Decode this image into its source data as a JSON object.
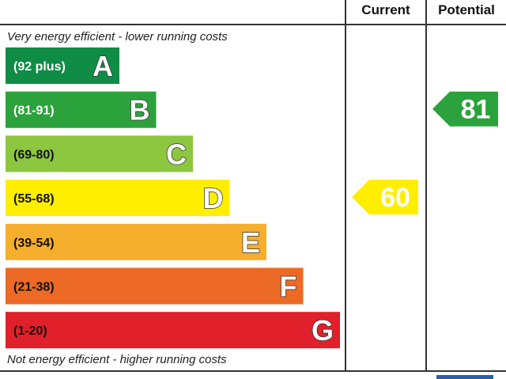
{
  "header": {
    "current": "Current",
    "potential": "Potential"
  },
  "captions": {
    "top": "Very energy efficient - lower running costs",
    "bottom": "Not energy efficient - higher running costs"
  },
  "chart_data": {
    "type": "bar",
    "categories": [
      "A",
      "B",
      "C",
      "D",
      "E",
      "F",
      "G"
    ],
    "ranges": [
      "(92 plus)",
      "(81-91)",
      "(69-80)",
      "(55-68)",
      "(39-54)",
      "(21-38)",
      "(1-20)"
    ],
    "colors": [
      "#0f8c46",
      "#2ca23c",
      "#8dc63f",
      "#ffee00",
      "#f6ae2d",
      "#ec6a25",
      "#e0202a"
    ],
    "range_text_colors": [
      "#ffffff",
      "#ffffff",
      "#111111",
      "#111111",
      "#111111",
      "#111111",
      "#111111"
    ],
    "current": {
      "value": 60,
      "band": "D",
      "color": "#ffee00"
    },
    "potential": {
      "value": 81,
      "band": "B",
      "color": "#2ca23c"
    }
  }
}
